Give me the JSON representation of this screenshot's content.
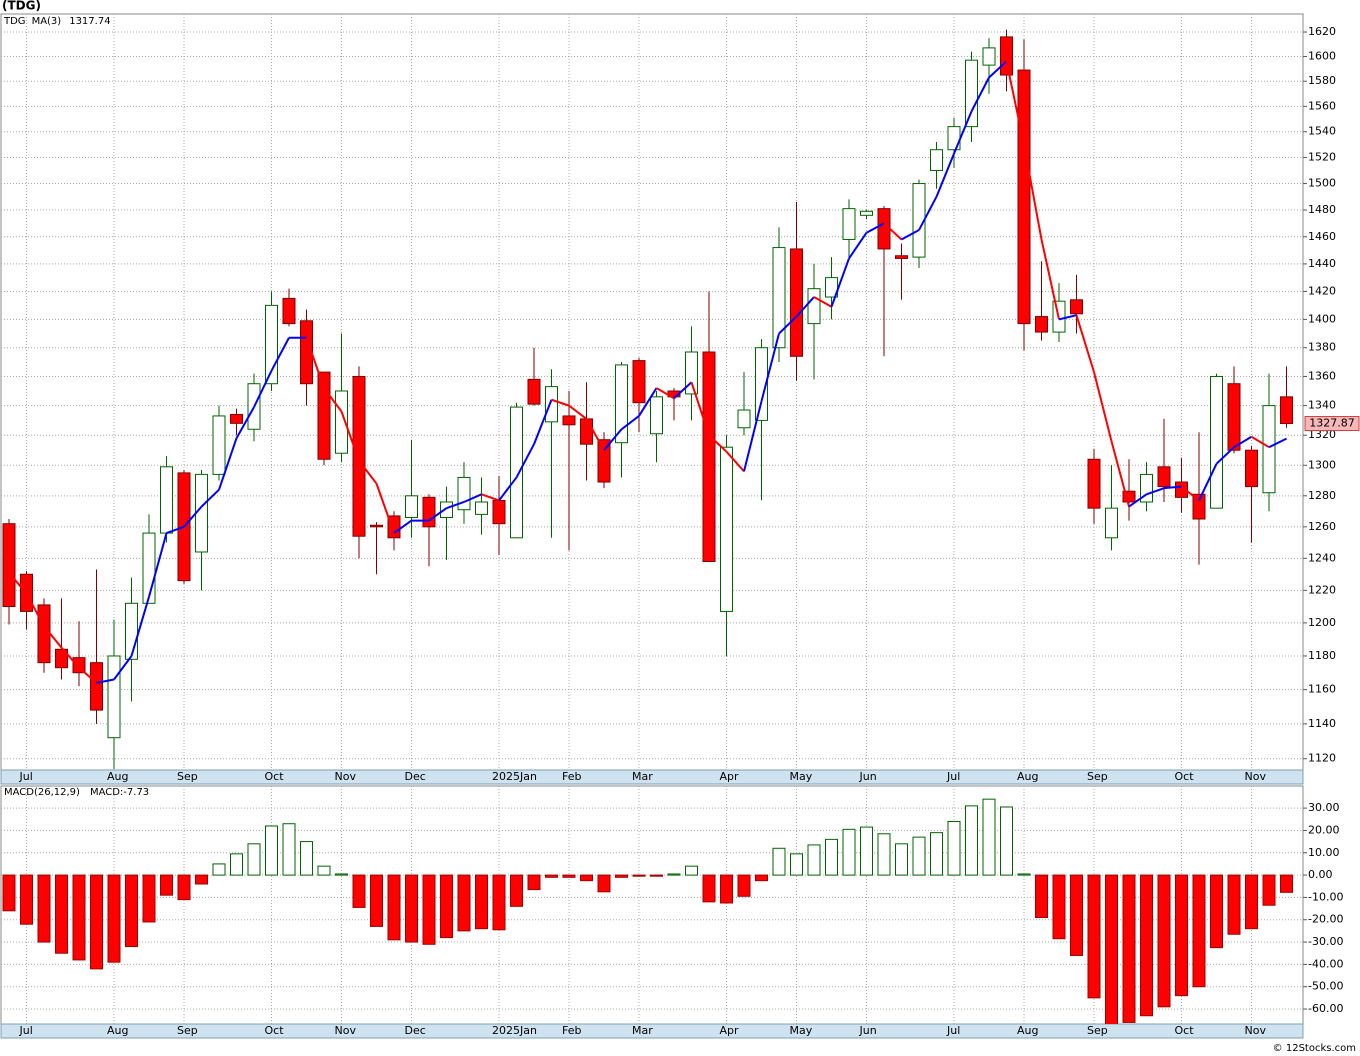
{
  "title": "(TDG)",
  "footer": "© 12Stocks.com",
  "chart_data": [
    {
      "type": "candlestick",
      "legend_symbol": "TDG",
      "log_scale": true,
      "grid": true,
      "up_color": "#006400",
      "down_color": "#ff0000",
      "categories": [
        null,
        "Jul",
        null,
        null,
        null,
        null,
        "Aug",
        null,
        null,
        null,
        "Sep",
        null,
        null,
        null,
        null,
        "Oct",
        null,
        null,
        null,
        "Nov",
        null,
        null,
        null,
        "Dec",
        null,
        null,
        null,
        null,
        "2025Jan",
        null,
        null,
        null,
        "Feb",
        null,
        null,
        null,
        "Mar",
        null,
        null,
        null,
        null,
        "Apr",
        null,
        null,
        null,
        "May",
        null,
        null,
        null,
        "Jun",
        null,
        null,
        null,
        null,
        "Jul",
        null,
        null,
        null,
        "Aug",
        null,
        null,
        null,
        "Sep",
        null,
        null,
        null,
        null,
        "Oct",
        null,
        null,
        null,
        "Nov",
        null,
        null
      ],
      "open": [
        1262,
        1230,
        1211,
        1184,
        1179,
        1176,
        1132,
        1178,
        1212,
        1256,
        1295,
        1244,
        1294,
        1334,
        1324,
        1355,
        1415,
        1399,
        1363,
        1308,
        1360,
        1261,
        1267,
        1266,
        1279,
        1266,
        1271,
        1268,
        1277,
        1253,
        1358,
        1329,
        1333,
        1331,
        1317,
        1315,
        1371,
        1321,
        1350,
        1348,
        1377,
        1207,
        1325,
        1330,
        1380,
        1451,
        1397,
        1416,
        1458,
        1476,
        1481,
        1446,
        1445,
        1510,
        1526,
        1544,
        1593,
        1616,
        1589,
        1402,
        1391,
        1414,
        1304,
        1253,
        1283,
        1276,
        1299,
        1289,
        1281,
        1272,
        1355,
        1310,
        1282,
        1346
      ],
      "high": [
        1265,
        1232,
        1215,
        1215,
        1201,
        1233,
        1202,
        1228,
        1268,
        1306,
        1297,
        1297,
        1340,
        1338,
        1362,
        1420,
        1422,
        1407,
        1363,
        1390,
        1367,
        1263,
        1270,
        1317,
        1281,
        1286,
        1302,
        1292,
        1293,
        1342,
        1380,
        1365,
        1350,
        1356,
        1322,
        1370,
        1373,
        1350,
        1352,
        1395,
        1420,
        1320,
        1363,
        1386,
        1467,
        1486,
        1440,
        1445,
        1488,
        1480,
        1483,
        1455,
        1503,
        1532,
        1551,
        1604,
        1615,
        1622,
        1614,
        1442,
        1426,
        1432,
        1311,
        1300,
        1304,
        1302,
        1331,
        1305,
        1322,
        1362,
        1367,
        1313,
        1362,
        1367
      ],
      "low": [
        1199,
        1196,
        1170,
        1166,
        1162,
        1140,
        1114,
        1153,
        1212,
        1250,
        1224,
        1220,
        1290,
        1320,
        1316,
        1350,
        1395,
        1340,
        1300,
        1302,
        1240,
        1230,
        1245,
        1253,
        1235,
        1239,
        1262,
        1255,
        1242,
        1253,
        1340,
        1253,
        1245,
        1290,
        1285,
        1292,
        1322,
        1302,
        1330,
        1330,
        1238,
        1180,
        1320,
        1277,
        1370,
        1357,
        1358,
        1400,
        1445,
        1473,
        1374,
        1414,
        1437,
        1496,
        1512,
        1532,
        1570,
        1572,
        1378,
        1385,
        1384,
        1390,
        1262,
        1245,
        1264,
        1270,
        1276,
        1269,
        1236,
        1272,
        1308,
        1250,
        1270,
        1325
      ],
      "close": [
        1210,
        1207,
        1176,
        1173,
        1170,
        1148,
        1180,
        1212,
        1256,
        1299,
        1226,
        1294,
        1333,
        1328,
        1355,
        1410,
        1397,
        1355,
        1304,
        1350,
        1254,
        1260,
        1253,
        1280,
        1260,
        1276,
        1292,
        1276,
        1262,
        1339,
        1341,
        1353,
        1327,
        1314,
        1289,
        1368,
        1342,
        1346,
        1346,
        1377,
        1238,
        1312,
        1337,
        1380,
        1452,
        1374,
        1422,
        1430,
        1481,
        1479,
        1451,
        1444,
        1500,
        1526,
        1544,
        1597,
        1607,
        1585,
        1397,
        1391,
        1413,
        1404,
        1272,
        1272,
        1276,
        1294,
        1286,
        1279,
        1265,
        1360,
        1310,
        1286,
        1340,
        1327.87
      ],
      "series": [
        {
          "name": "MA(3)",
          "color": "#0000ff",
          "down_color": "#ff0000",
          "last_value": 1317.74,
          "values": [
            1231,
            1218,
            1198,
            1185,
            1173,
            1164,
            1166,
            1180,
            1216,
            1256,
            1260,
            1273,
            1284,
            1318,
            1339,
            1364,
            1387,
            1387,
            1352,
            1336,
            1303,
            1288,
            1256,
            1264,
            1264,
            1272,
            1276,
            1281,
            1277,
            1292,
            1314,
            1344,
            1340,
            1331,
            1310,
            1324,
            1333,
            1352,
            1345,
            1356,
            1320,
            1309,
            1296,
            1343,
            1390,
            1402,
            1416,
            1409,
            1444,
            1463,
            1470,
            1458,
            1465,
            1490,
            1523,
            1556,
            1583,
            1596,
            1530,
            1458,
            1400,
            1403,
            1363,
            1316,
            1273,
            1281,
            1285,
            1286,
            1277,
            1301,
            1312,
            1319,
            1312,
            1317.74
          ]
        }
      ],
      "last_price": 1327.87,
      "ylim": [
        1113.6,
        1634.9
      ],
      "yticks": [
        1120,
        1140,
        1160,
        1180,
        1200,
        1220,
        1240,
        1260,
        1280,
        1300,
        1320,
        1340,
        1360,
        1380,
        1400,
        1420,
        1440,
        1460,
        1480,
        1500,
        1520,
        1540,
        1560,
        1580,
        1600,
        1620
      ]
    },
    {
      "type": "bar",
      "title": "MACD(26,12,9)",
      "legend": "MACD:-7.73",
      "grid": true,
      "pos_color": "#006400",
      "neg_color": "#ff0000",
      "categories": [
        null,
        "Jul",
        null,
        null,
        null,
        null,
        "Aug",
        null,
        null,
        null,
        "Sep",
        null,
        null,
        null,
        null,
        "Oct",
        null,
        null,
        null,
        "Nov",
        null,
        null,
        null,
        "Dec",
        null,
        null,
        null,
        null,
        "2025Jan",
        null,
        null,
        null,
        "Feb",
        null,
        null,
        null,
        "Mar",
        null,
        null,
        null,
        null,
        "Apr",
        null,
        null,
        null,
        "May",
        null,
        null,
        null,
        "Jun",
        null,
        null,
        null,
        null,
        "Jul",
        null,
        null,
        null,
        "Aug",
        null,
        null,
        null,
        "Sep",
        null,
        null,
        null,
        null,
        "Oct",
        null,
        null,
        null,
        "Nov",
        null,
        null
      ],
      "values": [
        -16,
        -22,
        -30,
        -35,
        -38,
        -42,
        -39,
        -32,
        -21,
        -9,
        -11,
        -4,
        5,
        9.5,
        14,
        22,
        23,
        15,
        4,
        0.5,
        -14.5,
        -23,
        -29,
        -30,
        -31,
        -28,
        -25,
        -24,
        -24.5,
        -14,
        -6.5,
        -1,
        -1,
        -2.5,
        -7.5,
        -1,
        -0.5,
        -0.5,
        0.5,
        4,
        -12,
        -12.5,
        -9.5,
        -2.5,
        12,
        9.5,
        13.5,
        16,
        20.5,
        21.5,
        18.5,
        14,
        17,
        19,
        24,
        31,
        34,
        30.5,
        0.5,
        -19,
        -28.5,
        -36,
        -55,
        -68,
        -66,
        -63,
        -59,
        -54,
        -50,
        -32.5,
        -26.5,
        -24,
        -13.5,
        -7.73
      ],
      "ylim": [
        -66.7,
        39.9
      ],
      "yticks": [
        {
          "value": -60,
          "label": "-60.00"
        },
        {
          "value": -50,
          "label": "-50.00"
        },
        {
          "value": -40,
          "label": "-40.00"
        },
        {
          "value": -30,
          "label": "-30.00"
        },
        {
          "value": -20,
          "label": "-20.00"
        },
        {
          "value": -10,
          "label": "-10.00"
        },
        {
          "value": 0,
          "label": "0.00"
        },
        {
          "value": 10,
          "label": "10.00"
        },
        {
          "value": 20,
          "label": "20.00"
        },
        {
          "value": 30,
          "label": "30.00"
        }
      ]
    }
  ]
}
